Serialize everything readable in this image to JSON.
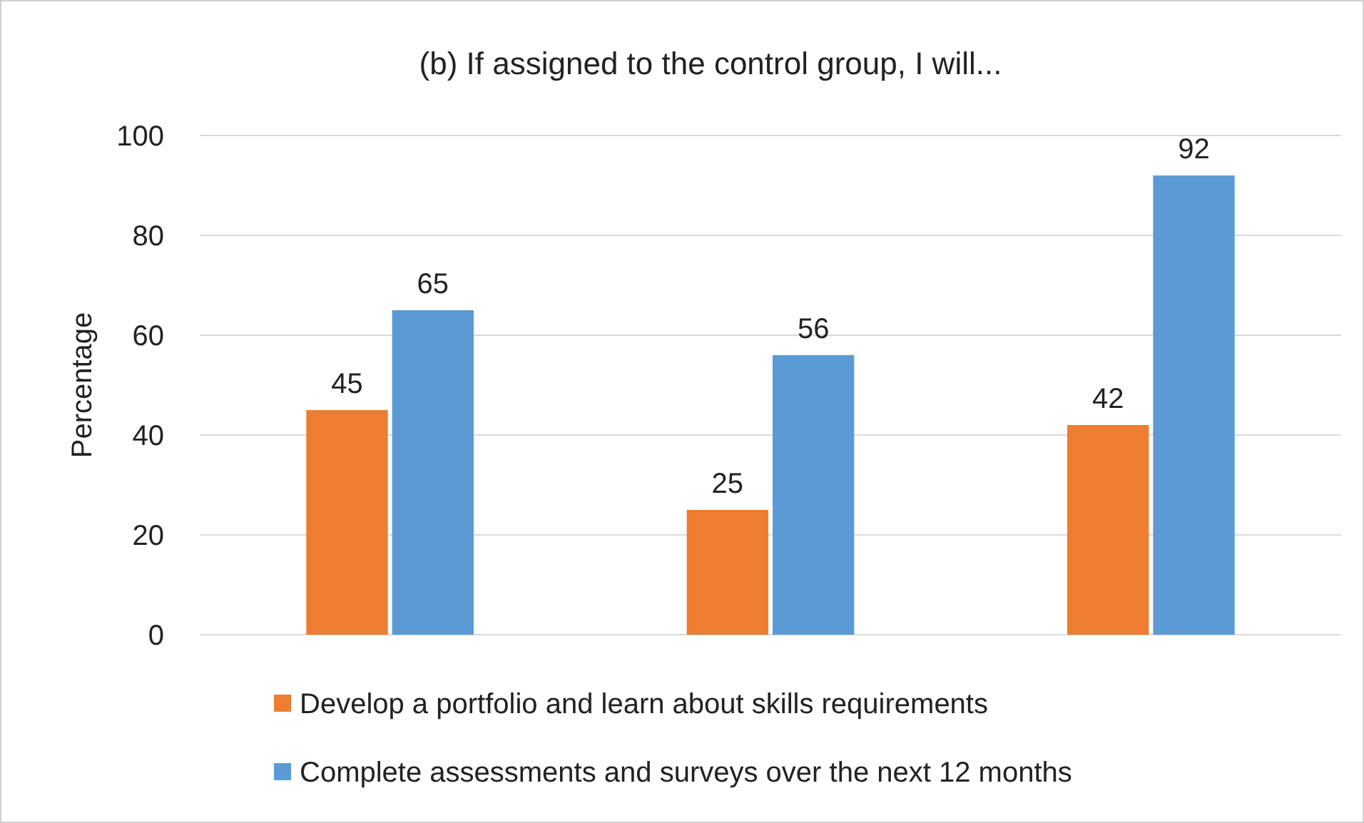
{
  "chart_data": {
    "type": "bar",
    "title": "(b) If assigned to the control group, I will...",
    "ylabel": "Percentage",
    "categories": [
      null,
      null,
      null
    ],
    "series": [
      {
        "name": "Develop a portfolio and learn about skills requirements",
        "color": "#ed7d31",
        "values": [
          45,
          25,
          42
        ]
      },
      {
        "name": "Complete assessments and surveys over the next 12 months",
        "color": "#5b9bd5",
        "values": [
          65,
          56,
          92
        ]
      }
    ],
    "ylim": [
      0,
      100
    ],
    "yticks": [
      0,
      20,
      40,
      60,
      80,
      100
    ],
    "grid": "y",
    "legend": "bottom",
    "data_labels": true
  }
}
